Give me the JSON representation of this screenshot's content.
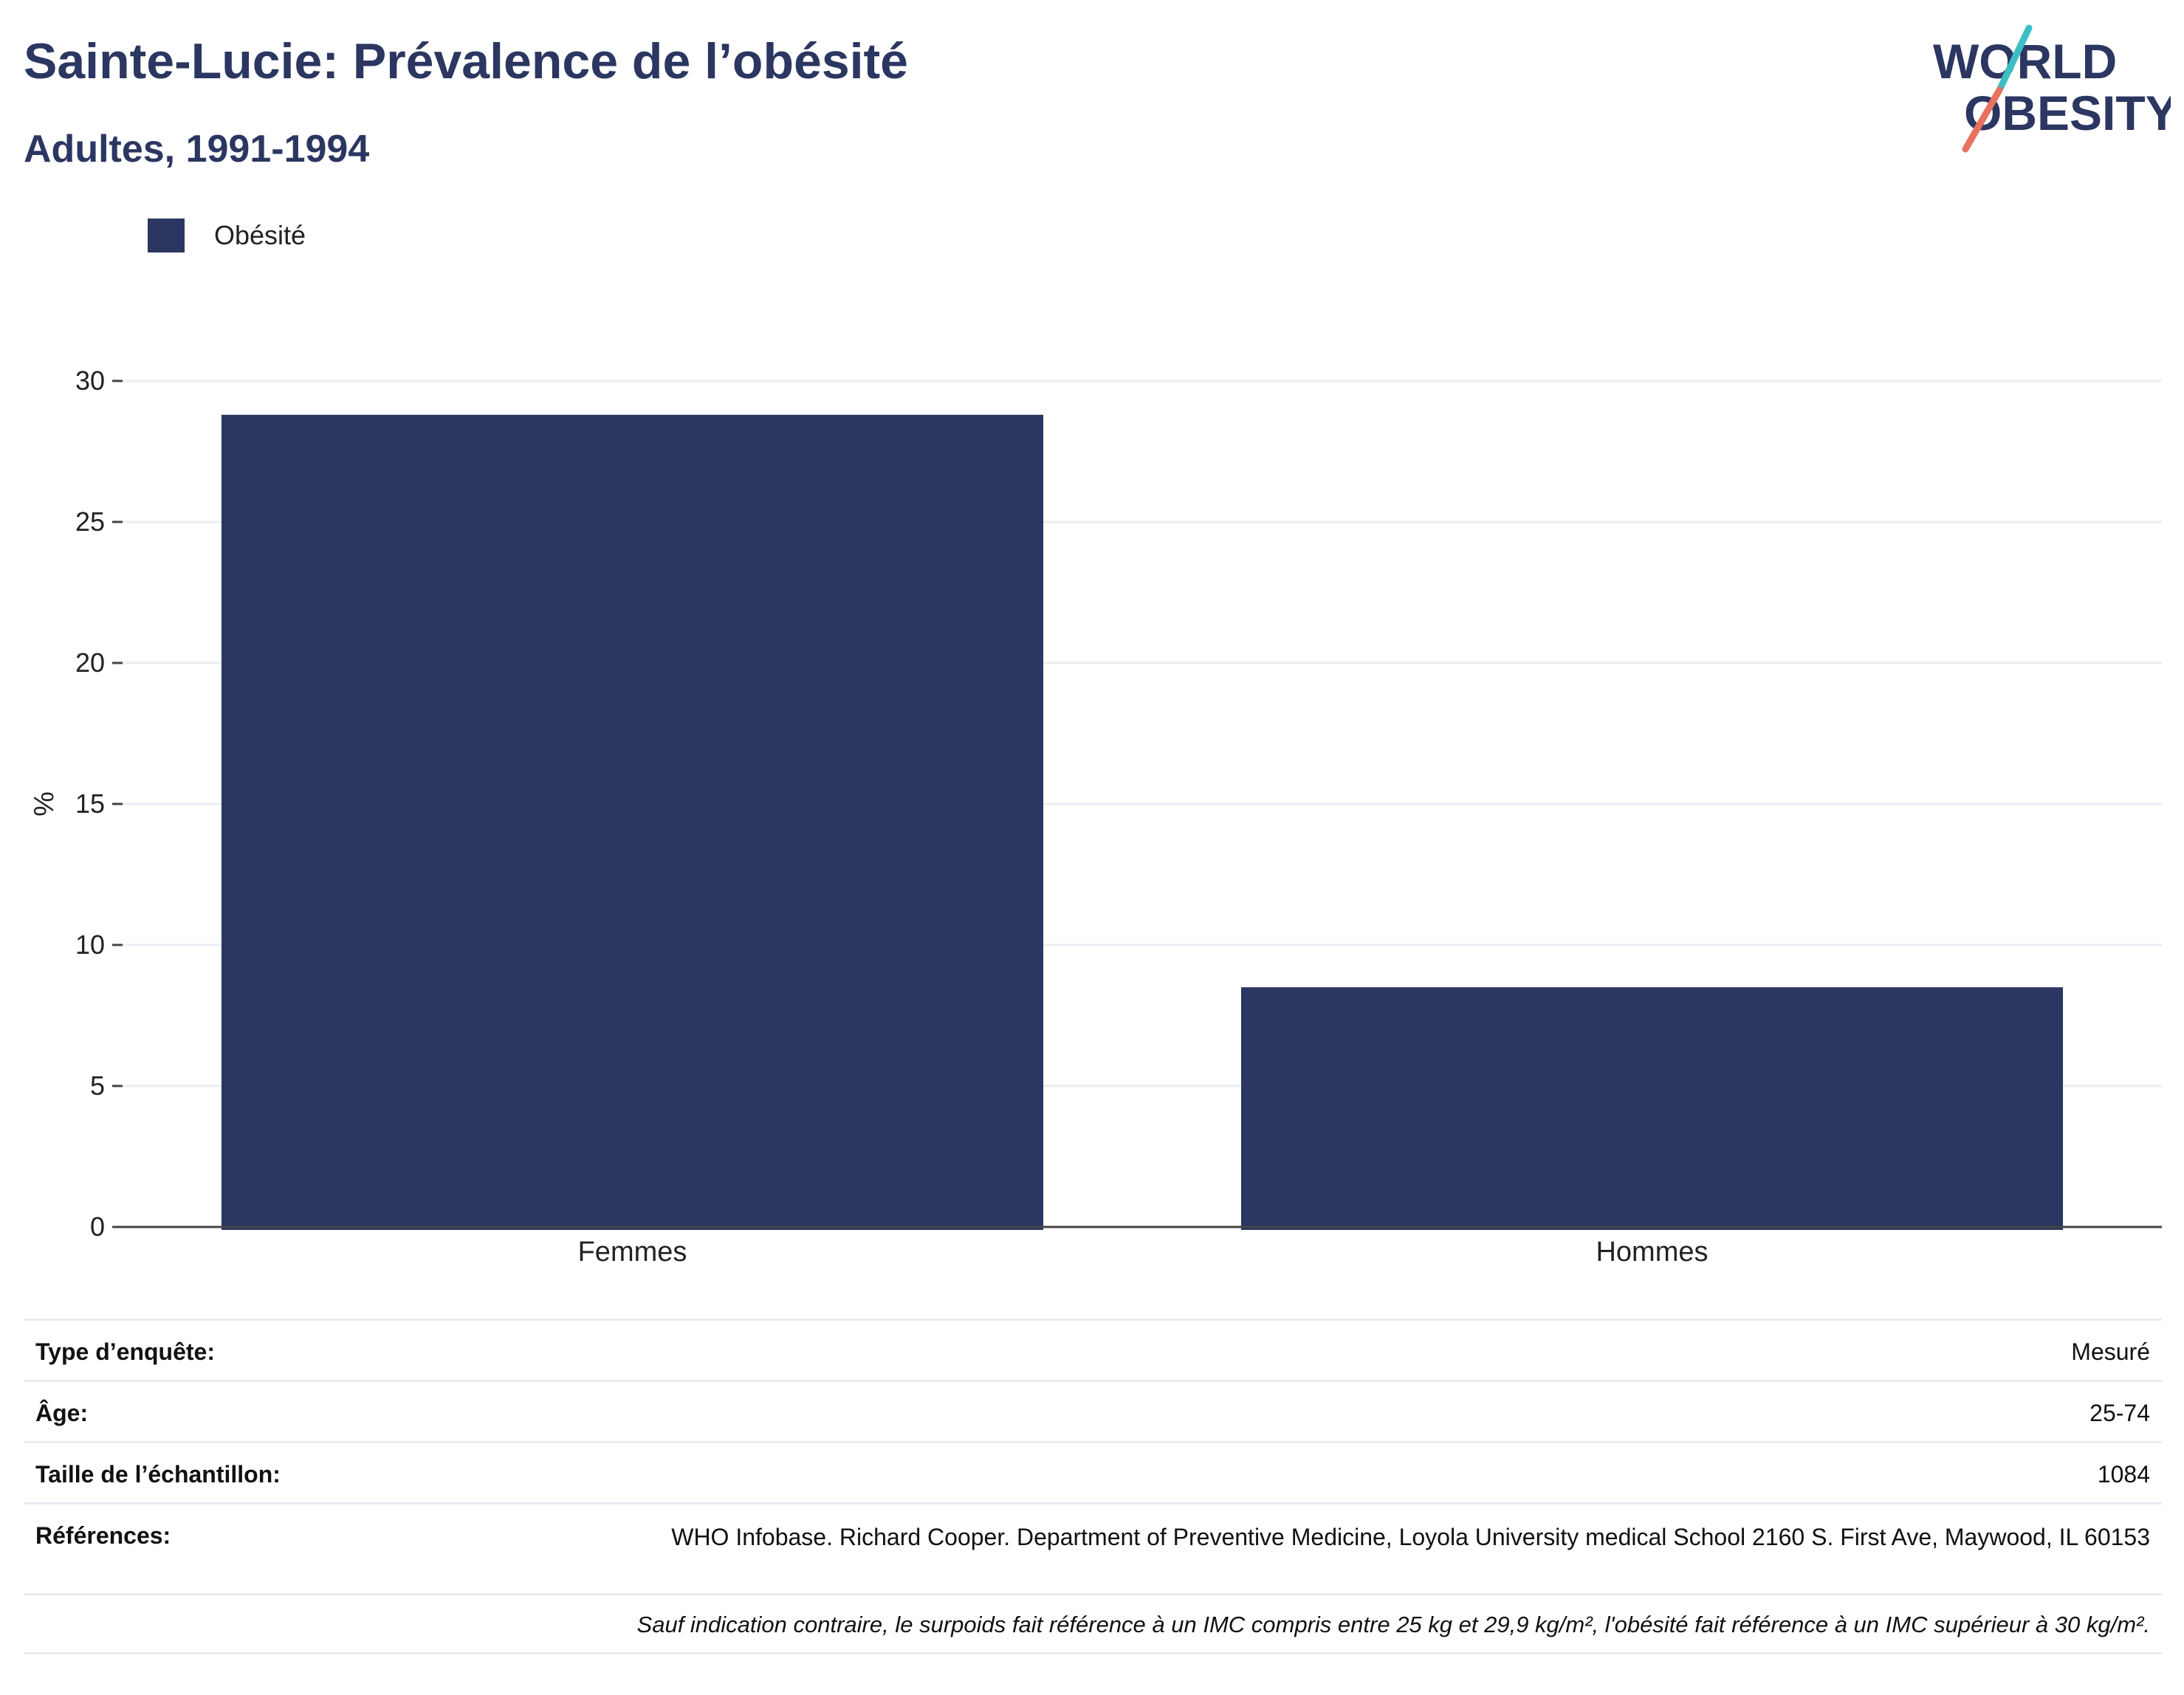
{
  "header": {
    "title": "Sainte-Lucie: Prévalence de l’obésité",
    "subtitle": "Adultes, 1991-1994"
  },
  "logo": {
    "line1": "WORLD",
    "line2": "OBESITY",
    "colors": {
      "text": "#2b3661",
      "slash_top": "#3bbfc4",
      "slash_bottom": "#e8715f"
    }
  },
  "colors": {
    "bar": "#2b3661",
    "grid": "#ebedf2",
    "axis": "#444444"
  },
  "chart_data": {
    "type": "bar",
    "categories": [
      "Femmes",
      "Hommes"
    ],
    "series": [
      {
        "name": "Obésité",
        "values": [
          28.8,
          8.5
        ]
      }
    ],
    "xlabel": "",
    "ylabel": "%",
    "ylim": [
      0,
      30
    ],
    "yticks": [
      0,
      5,
      10,
      15,
      20,
      25,
      30
    ],
    "grid": true,
    "legend_position": "top-left"
  },
  "info": {
    "survey_type_label": "Type d’enquête:",
    "survey_type_value": "Mesuré",
    "age_label": "Âge:",
    "age_value": "25-74",
    "sample_label": "Taille de l’échantillon:",
    "sample_value": "1084",
    "references_label": "Références:",
    "references_value": "WHO Infobase. Richard Cooper. Department of Preventive Medicine, Loyola University medical School 2160 S. First Ave, Maywood, IL 60153",
    "footnote": "Sauf indication contraire, le surpoids fait référence à un IMC compris entre 25 kg et 29,9 kg/m², l'obésité fait référence à un IMC supérieur à 30 kg/m²."
  }
}
